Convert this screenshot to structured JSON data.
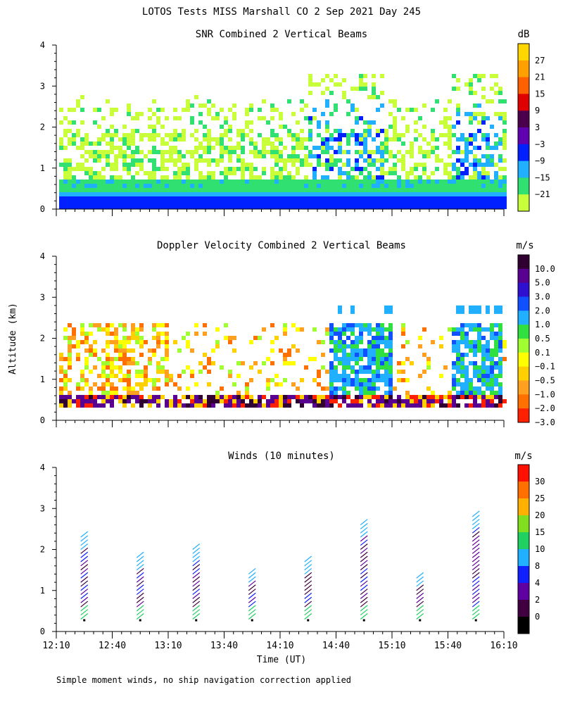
{
  "figure": {
    "title": "LOTOS Tests MISS Marshall CO   2 Sep 2021 Day 245",
    "ylabel": "Altitude (km)",
    "xlabel": "Time (UT)",
    "footnote": "Simple moment winds, no ship navigation correction applied"
  },
  "chart_data": [
    {
      "type": "heatmap",
      "title": "SNR Combined 2 Vertical Beams",
      "xlabel": "Time (UT)",
      "ylabel": "Altitude (km)",
      "xlim": [
        "12:10",
        "16:10"
      ],
      "ylim": [
        0,
        4
      ],
      "yticks": [
        "0",
        "1",
        "2",
        "3",
        "4"
      ],
      "colorbar": {
        "unit": "dB",
        "labels": [
          "27",
          "21",
          "15",
          "9",
          "3",
          "−3",
          "−9",
          "−15",
          "−21"
        ],
        "colors": [
          "#ffd700",
          "#ffa000",
          "#ff6000",
          "#e00000",
          "#4a004a",
          "#6000b0",
          "#0020ff",
          "#20b0ff",
          "#30e070",
          "#c8ff3a"
        ]
      },
      "description_values": {
        "times_min_since_1210": [
          0,
          30,
          60,
          90,
          120,
          150,
          180,
          210,
          240
        ],
        "strong_layer_km": [
          0.25,
          0.45
        ],
        "echo_top_km": 2.4
      }
    },
    {
      "type": "heatmap",
      "title": "Doppler Velocity Combined 2 Vertical Beams",
      "xlabel": "Time (UT)",
      "ylabel": "Altitude (km)",
      "xlim": [
        "12:10",
        "16:10"
      ],
      "ylim": [
        0,
        4
      ],
      "yticks": [
        "0",
        "1",
        "2",
        "3",
        "4"
      ],
      "colorbar": {
        "unit": "m/s",
        "labels": [
          "10.0",
          "5.0",
          "3.0",
          "2.0",
          "1.0",
          "0.5",
          "0.1",
          "−0.1",
          "−0.5",
          "−1.0",
          "−2.0",
          "−3.0"
        ],
        "colors": [
          "#300030",
          "#5a0090",
          "#3010d0",
          "#1050ff",
          "#20b0ff",
          "#30e040",
          "#a0ff30",
          "#ffff00",
          "#ffd000",
          "#ffa020",
          "#ff7000",
          "#ff2000"
        ]
      }
    },
    {
      "type": "scatter",
      "title": "Winds (10 minutes)",
      "xlabel": "Time (UT)",
      "ylabel": "Altitude (km)",
      "xlim": [
        "12:10",
        "16:10"
      ],
      "ylim": [
        0,
        4
      ],
      "yticks": [
        "0",
        "1",
        "2",
        "3",
        "4"
      ],
      "xticks": [
        "12:10",
        "12:40",
        "13:10",
        "13:40",
        "14:10",
        "14:40",
        "15:10",
        "15:40",
        "16:10"
      ],
      "colorbar": {
        "unit": "m/s",
        "labels": [
          "30",
          "25",
          "20",
          "15",
          "10",
          "8",
          "4",
          "2",
          "0"
        ],
        "colors": [
          "#ff1000",
          "#ff7000",
          "#ffb000",
          "#80e020",
          "#20d060",
          "#20b0ff",
          "#1020ff",
          "#6000a0",
          "#400040",
          "#000000"
        ]
      },
      "profiles_time": [
        "12:25",
        "12:55",
        "13:25",
        "13:55",
        "14:25",
        "14:55",
        "15:25",
        "15:55"
      ]
    }
  ]
}
